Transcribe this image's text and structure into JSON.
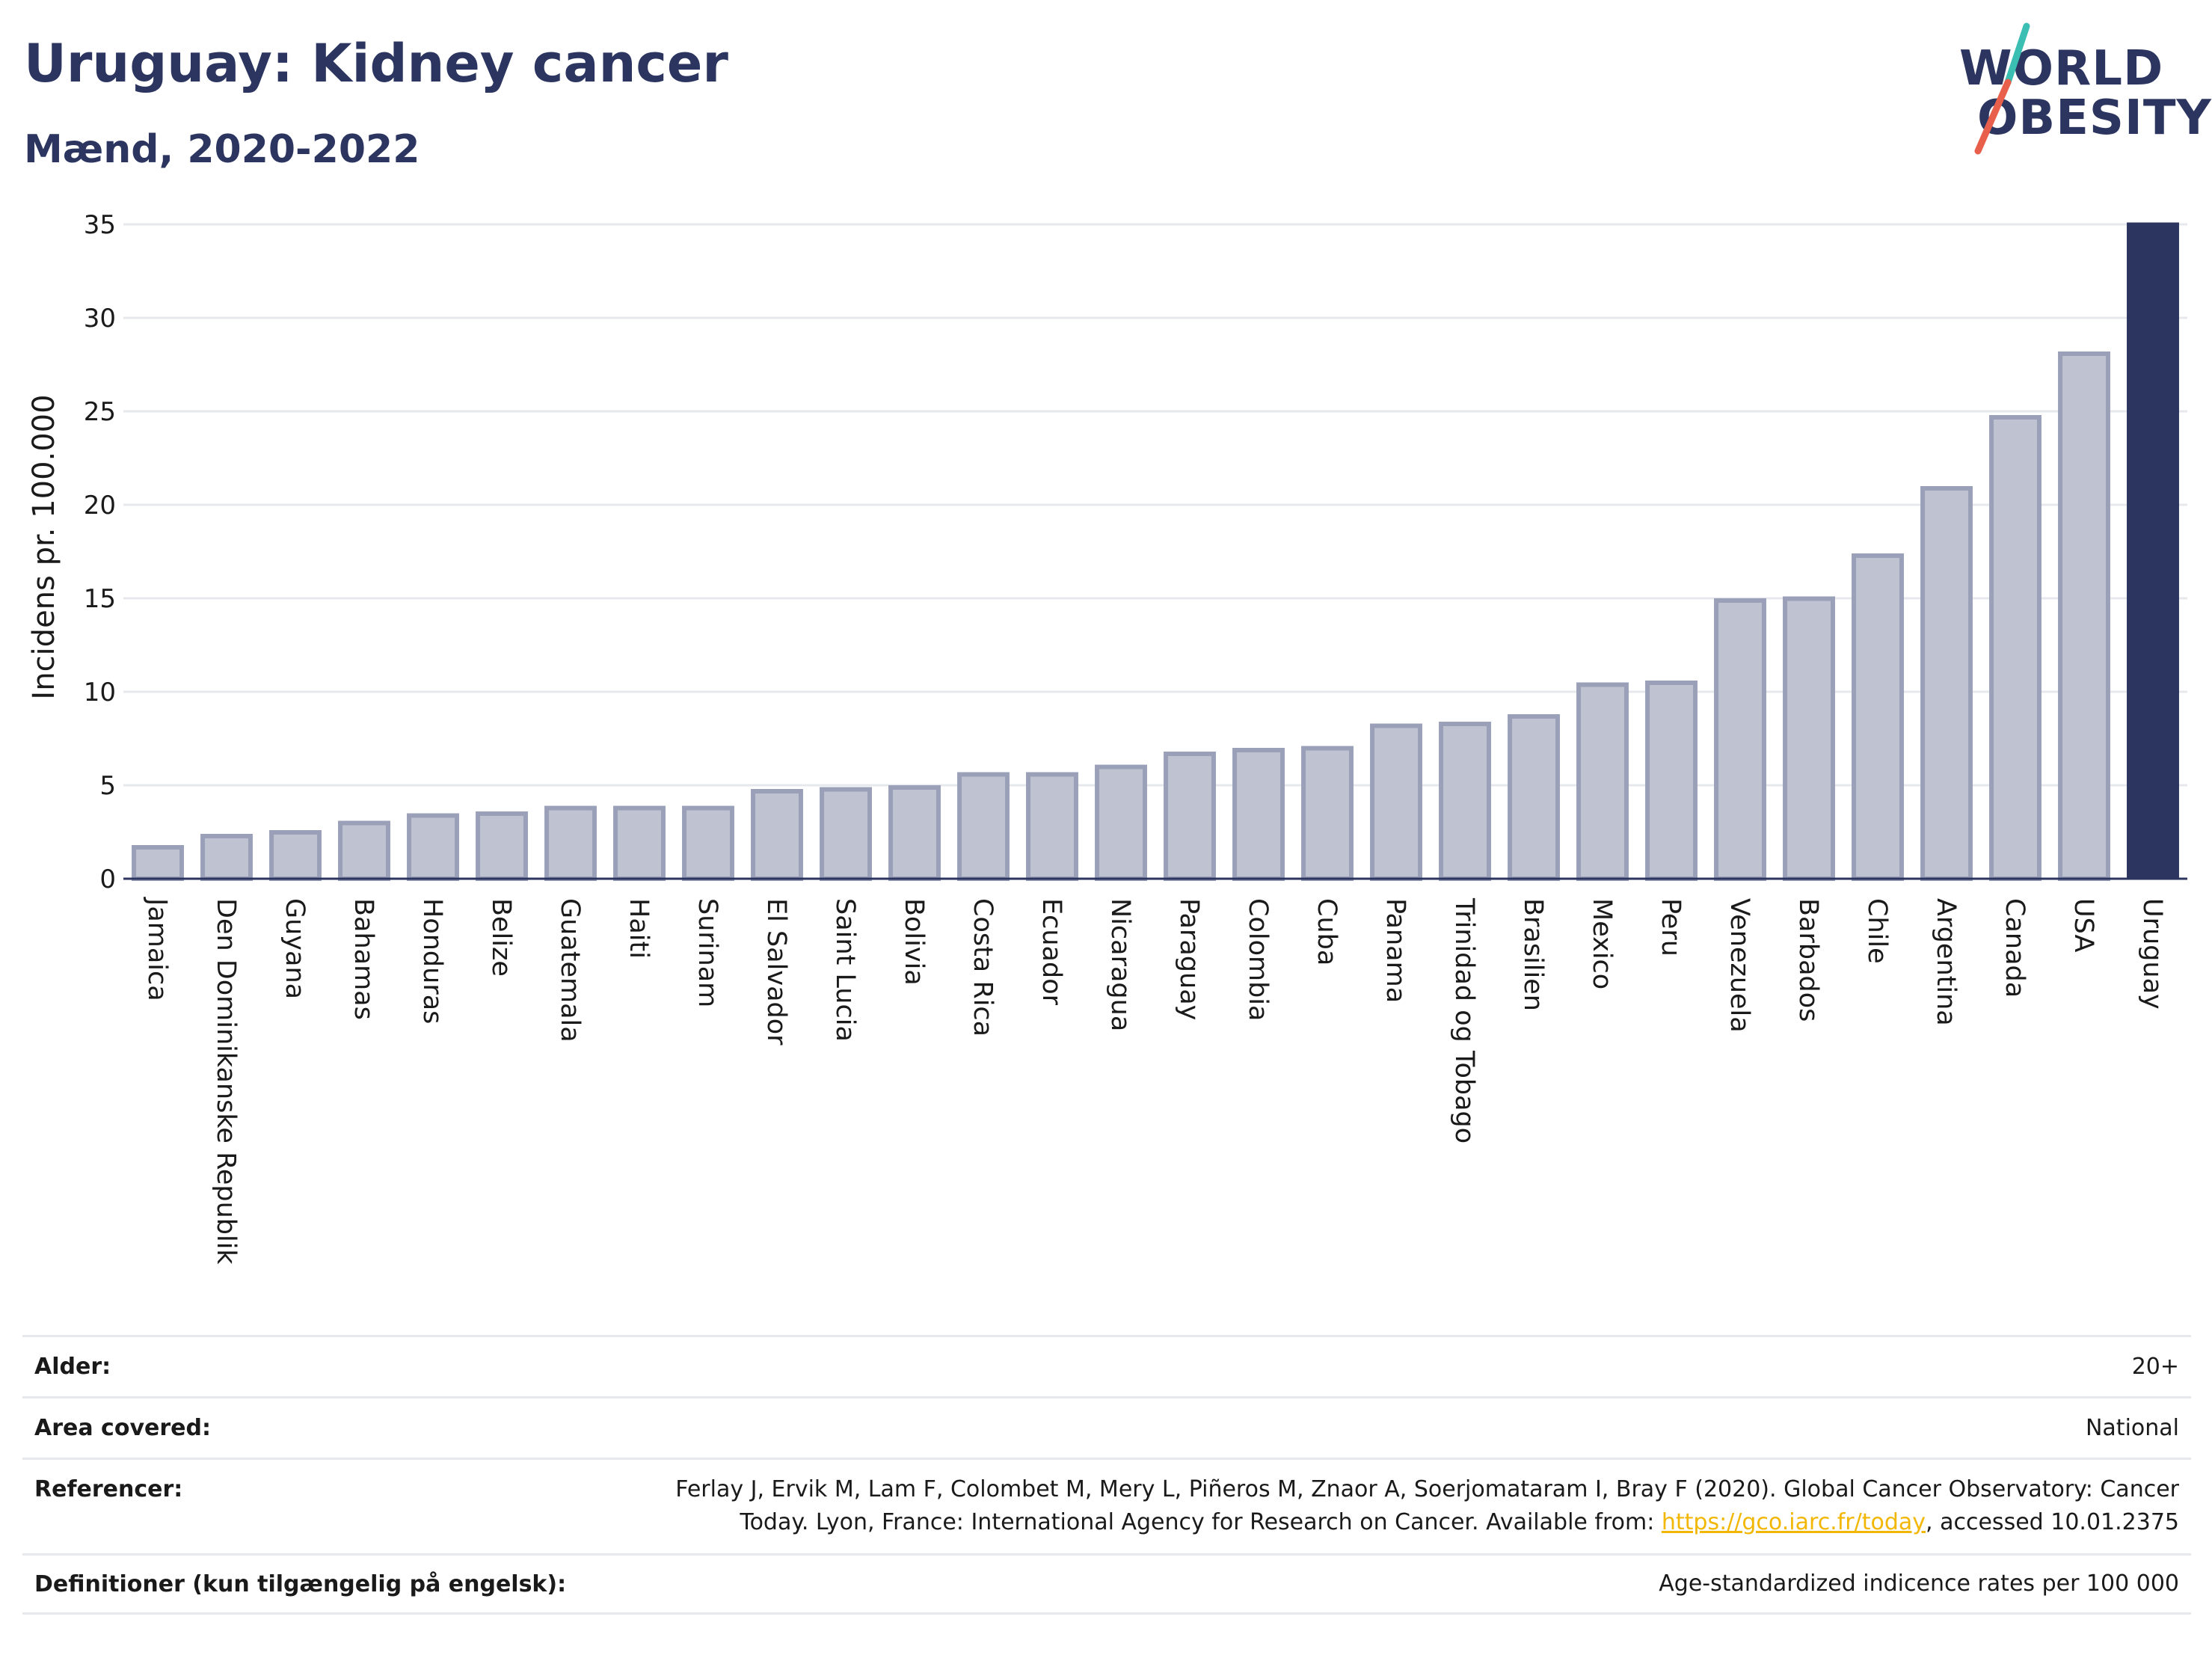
{
  "title": "Uruguay: Kidney cancer",
  "subtitle": "Mænd, 2020-2022",
  "logo": {
    "line1": "WORLD",
    "line2": "OBESITY",
    "colors": {
      "text": "#2b3560",
      "slash_top": "#3bbfb3",
      "slash_bottom": "#e8604c"
    }
  },
  "chart_data": {
    "type": "bar",
    "ylabel": "Incidens pr. 100.000",
    "xlabel": "",
    "ylim": [
      0,
      35
    ],
    "yticks": [
      0,
      5,
      10,
      15,
      20,
      25,
      30,
      35
    ],
    "grid": true,
    "categories": [
      "Jamaica",
      "Den Dominikanske Republik",
      "Guyana",
      "Bahamas",
      "Honduras",
      "Belize",
      "Guatemala",
      "Haiti",
      "Surinam",
      "El Salvador",
      "Saint Lucia",
      "Bolivia",
      "Costa Rica",
      "Ecuador",
      "Nicaragua",
      "Paraguay",
      "Colombia",
      "Cuba",
      "Panama",
      "Trinidad og Tobago",
      "Brasilien",
      "Mexico",
      "Peru",
      "Venezuela",
      "Barbados",
      "Chile",
      "Argentina",
      "Canada",
      "USA",
      "Uruguay"
    ],
    "values": [
      1.8,
      2.4,
      2.6,
      3.1,
      3.5,
      3.6,
      3.9,
      3.9,
      3.9,
      4.8,
      4.9,
      5.0,
      5.7,
      5.7,
      6.1,
      6.8,
      7.0,
      7.1,
      8.3,
      8.4,
      8.8,
      10.5,
      10.6,
      15.0,
      15.1,
      17.4,
      21.0,
      24.8,
      28.2,
      35.1
    ],
    "highlight": "Uruguay",
    "colors": {
      "bar_fill": "#bfc3d1",
      "bar_stroke": "#9aa0b8",
      "highlight_fill": "#2b3560",
      "grid": "#e6e8ee",
      "axis": "#2b3560"
    }
  },
  "footer": {
    "rows": [
      {
        "label": "Alder:",
        "value": "20+"
      },
      {
        "label": "Area covered:",
        "value": "National"
      },
      {
        "label": "Referencer:",
        "value_pre": "Ferlay J, Ervik M, Lam F, Colombet M, Mery L, Piñeros M, Znaor A, Soerjomataram I, Bray F (2020). Global Cancer Observatory: Cancer Today. Lyon, France: International Agency for Research on Cancer. Available from: ",
        "link": "https://gco.iarc.fr/today",
        "value_post": ", accessed 10.01.2375"
      },
      {
        "label": "Definitioner (kun tilgængelig på engelsk):",
        "value": "Age-standardized indicence rates per 100 000"
      }
    ]
  }
}
